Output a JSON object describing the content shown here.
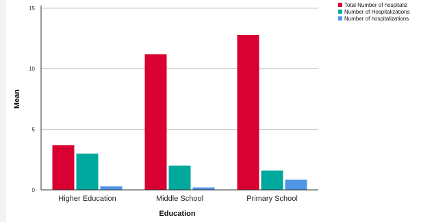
{
  "chart_data": {
    "type": "bar",
    "xlabel": "Education",
    "ylabel": "Mean",
    "ylim": [
      0,
      15
    ],
    "yticks": [
      "0",
      "5",
      "10",
      "15"
    ],
    "categories": [
      "Higher Education",
      "Middle School",
      "Primary School"
    ],
    "grid": "horizontal",
    "legend_position": "top-right",
    "series": [
      {
        "name": "Total Number of hospitaliz",
        "color": "#d90032",
        "values": [
          3.7,
          11.2,
          12.8
        ]
      },
      {
        "name": "Number of Hospitalizations",
        "color": "#00a99d",
        "values": [
          3.0,
          2.0,
          1.6
        ]
      },
      {
        "name": "Number of hospitalizations",
        "color": "#4f96e8",
        "values": [
          0.3,
          0.2,
          0.85
        ]
      }
    ]
  }
}
